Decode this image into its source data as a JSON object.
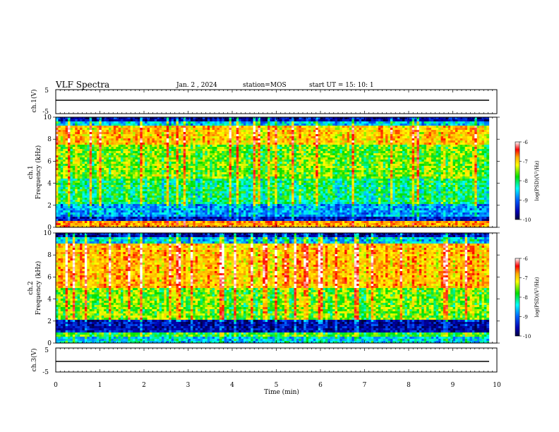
{
  "header": {
    "title": "VLF Spectra",
    "date": "Jan. 2 , 2024",
    "station": "station=MOS",
    "start": "start UT =  15: 10: 1"
  },
  "colorbar": {
    "label": "log(PSD)(V²/Hz)",
    "ticks": [
      "-6",
      "-7",
      "-8",
      "-9",
      "-10"
    ],
    "colormap": [
      "#ffffff",
      "#ff0000",
      "#ffb000",
      "#ffff00",
      "#00e000",
      "#00ffff",
      "#0060ff",
      "#0000b0",
      "#000040"
    ]
  },
  "chart_data": [
    {
      "type": "line",
      "panel": "ch.1",
      "ylabel": "ch.1(V)",
      "yticks": [
        "5",
        "-5"
      ],
      "ylim": [
        -5,
        5
      ],
      "x": [
        0,
        9.82
      ],
      "values": [
        0,
        0
      ]
    },
    {
      "type": "heatmap",
      "panel": "ch.1",
      "ylabel": "ch.1 Frequency (kHz)",
      "ylabel_top": "ch.1",
      "ylabel_bottom": "Frequency (kHz)",
      "yticks": [
        "0",
        "2",
        "4",
        "6",
        "8",
        "10"
      ],
      "ylim": [
        0,
        10
      ],
      "xlim": [
        0,
        9.82
      ],
      "zlim": [
        -10,
        -6
      ],
      "zlabel": "log(PSD)(V²/Hz)"
    },
    {
      "type": "heatmap",
      "panel": "ch.2",
      "ylabel": "ch.2 Frequency (kHz)",
      "ylabel_top": "ch.2",
      "ylabel_bottom": "Frequency (kHz)",
      "yticks": [
        "0",
        "2",
        "4",
        "6",
        "8",
        "10"
      ],
      "ylim": [
        0,
        10
      ],
      "xlim": [
        0,
        9.82
      ],
      "zlim": [
        -10,
        -6
      ],
      "zlabel": "log(PSD)(V²/Hz)"
    },
    {
      "type": "line",
      "panel": "ch.3",
      "ylabel": "ch.3(V)",
      "yticks": [
        "5",
        "-5"
      ],
      "ylim": [
        -5,
        5
      ],
      "x": [
        0,
        9.82
      ],
      "values": [
        0,
        0
      ]
    }
  ],
  "xaxis": {
    "label": "Time (min)",
    "ticks": [
      "0",
      "1",
      "2",
      "3",
      "4",
      "5",
      "6",
      "7",
      "8",
      "9",
      "10"
    ],
    "xlim": [
      0,
      10
    ]
  }
}
